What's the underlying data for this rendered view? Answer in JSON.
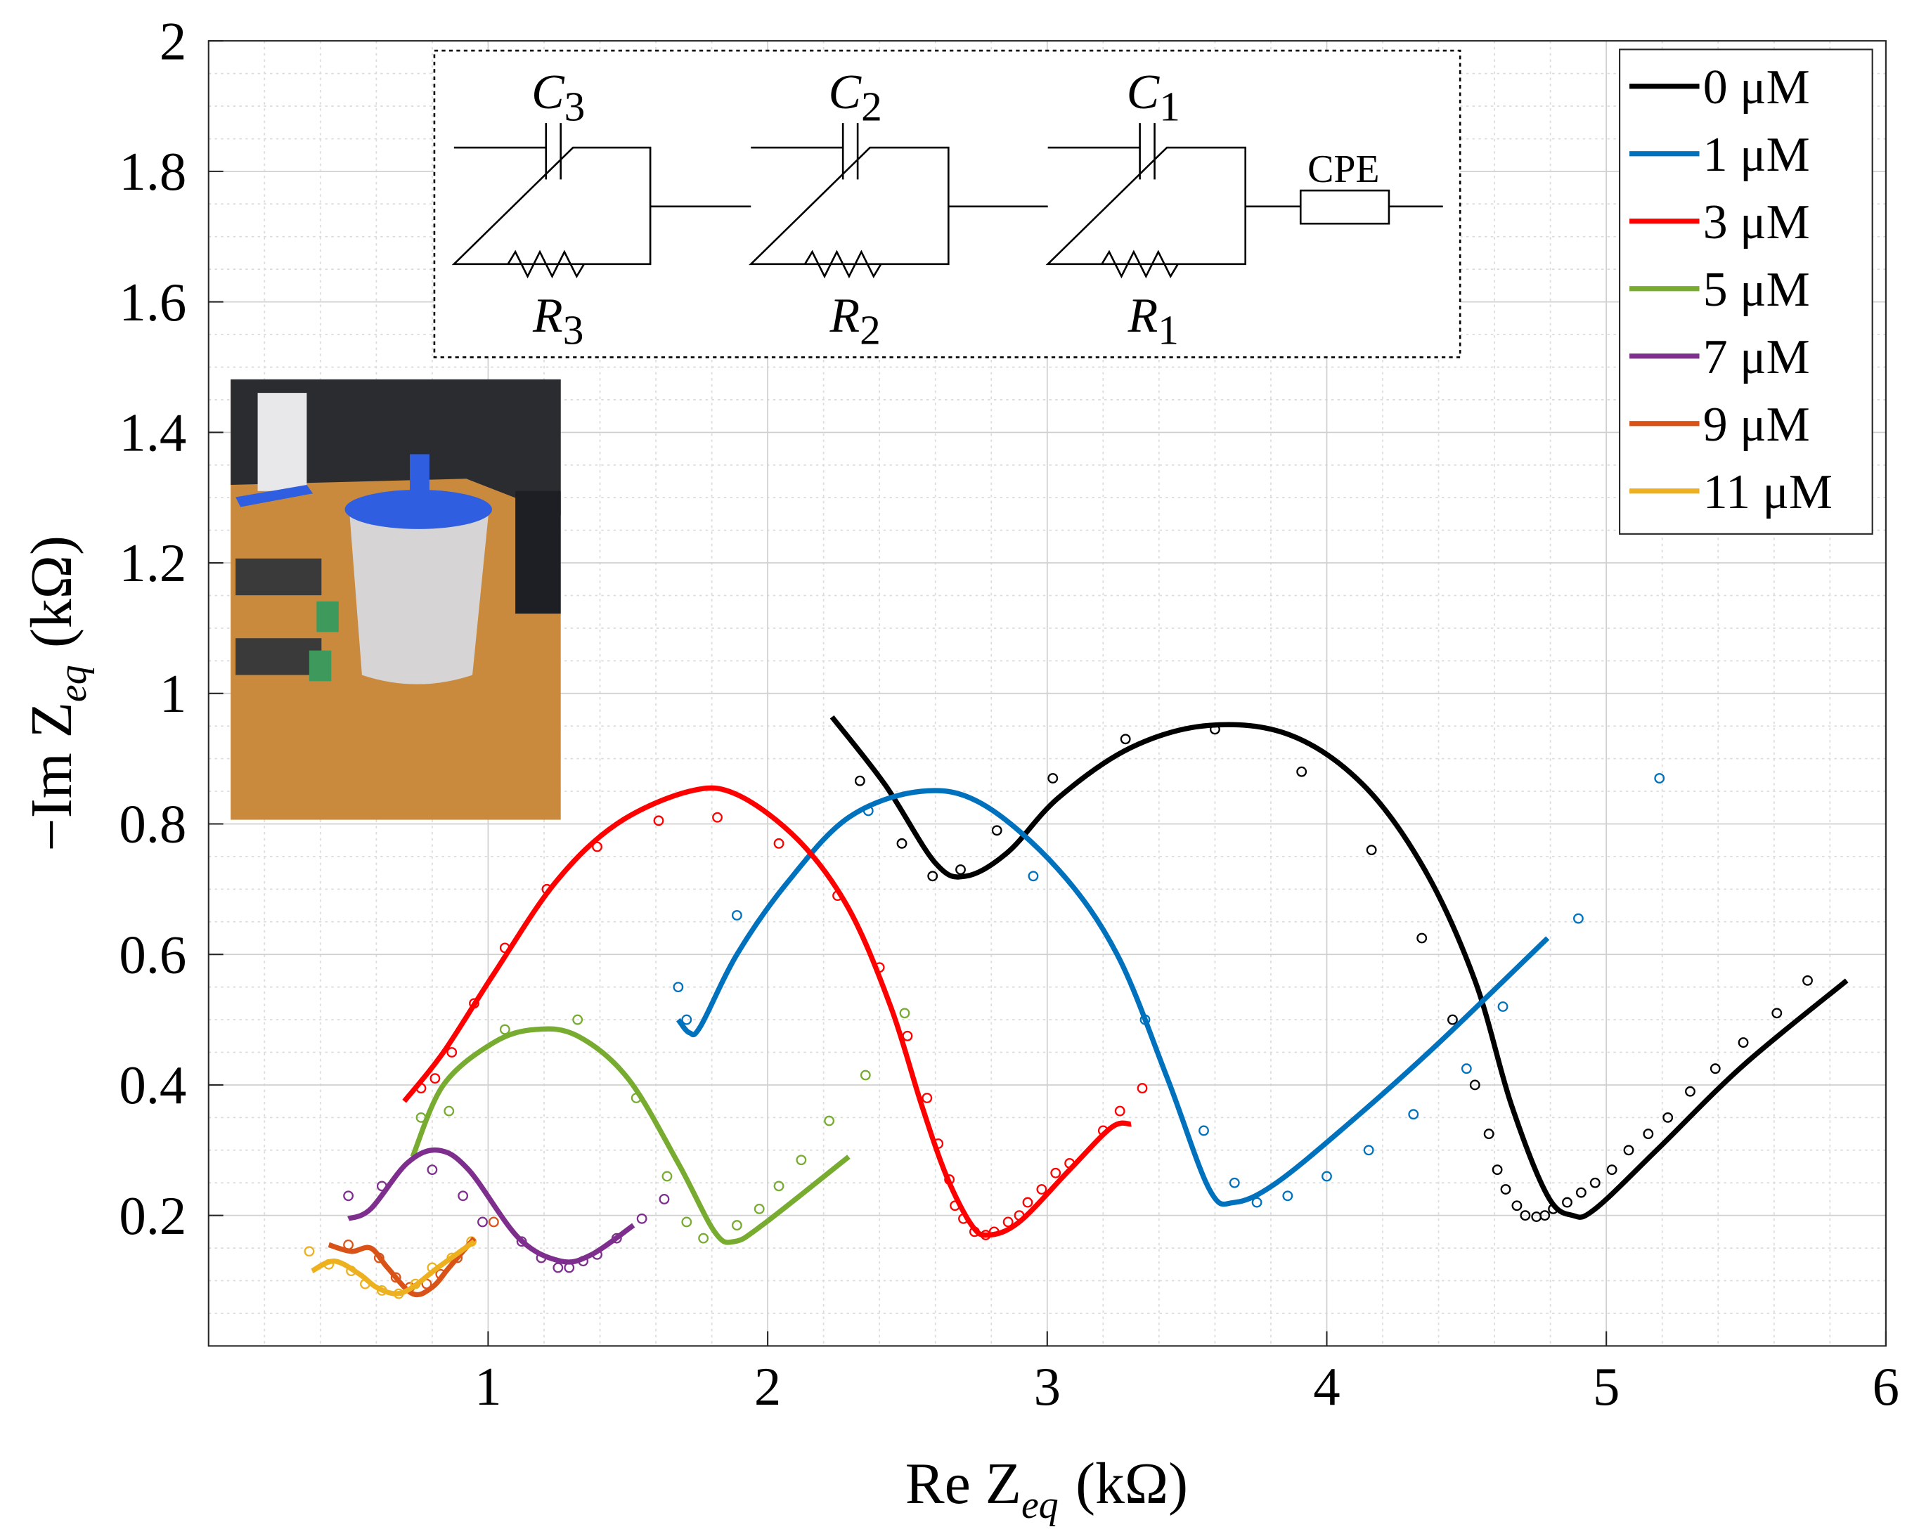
{
  "chart_data": {
    "type": "nyquist",
    "xlabel": {
      "main": "Re Z",
      "sub": "eq",
      "unit": "(kΩ)"
    },
    "ylabel": {
      "main": "−Im Z",
      "sub": "eq",
      "unit": "(kΩ)"
    },
    "xlim": [
      0,
      6
    ],
    "xticks": [
      1,
      2,
      3,
      4,
      5,
      6
    ],
    "ylim": [
      0,
      2
    ],
    "yticks": [
      0.2,
      0.4,
      0.6,
      0.8,
      1,
      1.2,
      1.4,
      1.6,
      1.8,
      2
    ],
    "grid": true,
    "minor_grid": true,
    "legend": "top-right",
    "series": [
      {
        "name": "0 μM",
        "color": "#000000",
        "fit": {
          "x": [
            2.23,
            2.42,
            2.6,
            2.71,
            2.86,
            3.04,
            3.3,
            3.58,
            3.87,
            4.13,
            4.35,
            4.53,
            4.66,
            4.79,
            4.88,
            4.96,
            5.18,
            5.49,
            5.86
          ],
          "values": [
            0.964,
            0.86,
            0.74,
            0.72,
            0.757,
            0.84,
            0.917,
            0.951,
            0.936,
            0.86,
            0.73,
            0.56,
            0.37,
            0.23,
            0.2,
            0.21,
            0.3,
            0.43,
            0.56
          ]
        },
        "measured": {
          "x": [
            2.33,
            2.48,
            2.59,
            2.69,
            2.82,
            3.02,
            3.28,
            3.6,
            3.91,
            4.16,
            4.34,
            4.45,
            4.53,
            4.58,
            4.61,
            4.64,
            4.68,
            4.71,
            4.75,
            4.78,
            4.81,
            4.86,
            4.91,
            4.96,
            5.02,
            5.08,
            5.15,
            5.22,
            5.3,
            5.39,
            5.49,
            5.61,
            5.72
          ],
          "values": [
            0.866,
            0.77,
            0.72,
            0.73,
            0.79,
            0.87,
            0.93,
            0.945,
            0.88,
            0.76,
            0.625,
            0.5,
            0.4,
            0.325,
            0.27,
            0.24,
            0.215,
            0.2,
            0.198,
            0.2,
            0.21,
            0.22,
            0.235,
            0.25,
            0.27,
            0.3,
            0.325,
            0.35,
            0.39,
            0.425,
            0.465,
            0.51,
            0.56
          ]
        }
      },
      {
        "name": "1 μM",
        "color": "#0072bd",
        "fit": {
          "x": [
            1.68,
            1.72,
            1.76,
            1.89,
            2.07,
            2.29,
            2.55,
            2.77,
            3.04,
            3.25,
            3.43,
            3.58,
            3.67,
            3.82,
            4.09,
            4.39,
            4.79
          ],
          "values": [
            0.5,
            0.48,
            0.49,
            0.6,
            0.71,
            0.81,
            0.85,
            0.83,
            0.73,
            0.6,
            0.41,
            0.24,
            0.22,
            0.25,
            0.345,
            0.46,
            0.625
          ]
        },
        "measured": {
          "x": [
            1.68,
            1.71,
            1.89,
            2.36,
            2.95,
            3.35,
            3.56,
            3.67,
            3.75,
            3.86,
            4,
            4.15,
            4.31,
            4.5,
            4.63,
            4.9,
            5.19
          ],
          "values": [
            0.55,
            0.5,
            0.66,
            0.82,
            0.72,
            0.5,
            0.33,
            0.25,
            0.22,
            0.23,
            0.26,
            0.3,
            0.355,
            0.425,
            0.52,
            0.655,
            0.87
          ]
        }
      },
      {
        "name": "3 μM",
        "color": "#ff0000",
        "fit": {
          "x": [
            0.7,
            0.84,
            1.02,
            1.24,
            1.46,
            1.72,
            1.89,
            2.11,
            2.29,
            2.44,
            2.55,
            2.64,
            2.73,
            2.79,
            2.9,
            3.08,
            3.23,
            3.3
          ],
          "values": [
            0.375,
            0.45,
            0.57,
            0.71,
            0.8,
            0.85,
            0.845,
            0.775,
            0.67,
            0.52,
            0.37,
            0.26,
            0.185,
            0.17,
            0.19,
            0.27,
            0.335,
            0.34
          ]
        },
        "measured": {
          "x": [
            0.76,
            0.81,
            0.87,
            0.95,
            1.06,
            1.21,
            1.39,
            1.61,
            1.82,
            2.04,
            2.25,
            2.4,
            2.5,
            2.57,
            2.61,
            2.65,
            2.67,
            2.7,
            2.74,
            2.78,
            2.81,
            2.86,
            2.9,
            2.93,
            2.98,
            3.03,
            3.08,
            3.2,
            3.26,
            3.34
          ],
          "values": [
            0.395,
            0.41,
            0.45,
            0.525,
            0.61,
            0.7,
            0.765,
            0.805,
            0.81,
            0.77,
            0.69,
            0.58,
            0.475,
            0.38,
            0.31,
            0.255,
            0.215,
            0.195,
            0.175,
            0.17,
            0.175,
            0.19,
            0.2,
            0.22,
            0.24,
            0.265,
            0.28,
            0.33,
            0.36,
            0.395
          ]
        }
      },
      {
        "name": "5 μM",
        "color": "#77ac30",
        "fit": {
          "x": [
            0.73,
            0.84,
            1.02,
            1.17,
            1.32,
            1.5,
            1.68,
            1.81,
            1.88,
            1.98,
            2.29
          ],
          "values": [
            0.29,
            0.4,
            0.465,
            0.485,
            0.475,
            0.41,
            0.28,
            0.175,
            0.16,
            0.185,
            0.29
          ]
        },
        "measured": {
          "x": [
            0.76,
            0.86,
            1.06,
            1.32,
            1.53,
            1.64,
            1.71,
            1.77,
            1.89,
            1.97,
            2.04,
            2.12,
            2.22,
            2.35,
            2.49
          ],
          "values": [
            0.35,
            0.36,
            0.485,
            0.5,
            0.38,
            0.26,
            0.19,
            0.165,
            0.185,
            0.21,
            0.245,
            0.285,
            0.345,
            0.415,
            0.51
          ]
        }
      },
      {
        "name": "7 μM",
        "color": "#7e2f8e",
        "fit": {
          "x": [
            0.5,
            0.58,
            0.71,
            0.82,
            0.93,
            1.11,
            1.26,
            1.37,
            1.52
          ],
          "values": [
            0.195,
            0.21,
            0.28,
            0.3,
            0.27,
            0.165,
            0.13,
            0.14,
            0.185
          ]
        },
        "measured": {
          "x": [
            0.5,
            0.62,
            0.8,
            0.91,
            0.98,
            1.12,
            1.19,
            1.25,
            1.29,
            1.34,
            1.39,
            1.46,
            1.55,
            1.63
          ],
          "values": [
            0.23,
            0.245,
            0.27,
            0.23,
            0.19,
            0.16,
            0.135,
            0.12,
            0.12,
            0.13,
            0.14,
            0.165,
            0.195,
            0.225
          ]
        }
      },
      {
        "name": "9 μM",
        "color": "#d95319",
        "fit": {
          "x": [
            0.43,
            0.51,
            0.58,
            0.64,
            0.73,
            0.8,
            0.86,
            0.95
          ],
          "values": [
            0.155,
            0.145,
            0.15,
            0.12,
            0.08,
            0.09,
            0.12,
            0.165
          ]
        },
        "measured": {
          "x": [
            0.5,
            0.61,
            0.67,
            0.72,
            0.78,
            0.83,
            0.89,
            1.02
          ],
          "values": [
            0.155,
            0.135,
            0.105,
            0.09,
            0.095,
            0.11,
            0.135,
            0.19
          ]
        }
      },
      {
        "name": "11 μM",
        "color": "#edb120",
        "fit": {
          "x": [
            0.37,
            0.45,
            0.54,
            0.6,
            0.67,
            0.73,
            0.82,
            0.95
          ],
          "values": [
            0.115,
            0.13,
            0.11,
            0.09,
            0.08,
            0.09,
            0.12,
            0.16
          ]
        },
        "measured": {
          "x": [
            0.36,
            0.43,
            0.51,
            0.56,
            0.62,
            0.68,
            0.74,
            0.8,
            0.87,
            0.94
          ],
          "values": [
            0.145,
            0.125,
            0.115,
            0.095,
            0.085,
            0.08,
            0.095,
            0.12,
            0.135,
            0.16
          ]
        }
      }
    ],
    "circuit": {
      "capacitors": [
        {
          "symbol": "C",
          "index": "3"
        },
        {
          "symbol": "C",
          "index": "2"
        },
        {
          "symbol": "C",
          "index": "1"
        }
      ],
      "resistors": [
        {
          "symbol": "R",
          "index": "3"
        },
        {
          "symbol": "R",
          "index": "2"
        },
        {
          "symbol": "R",
          "index": "1"
        }
      ],
      "element": "CPE"
    }
  }
}
